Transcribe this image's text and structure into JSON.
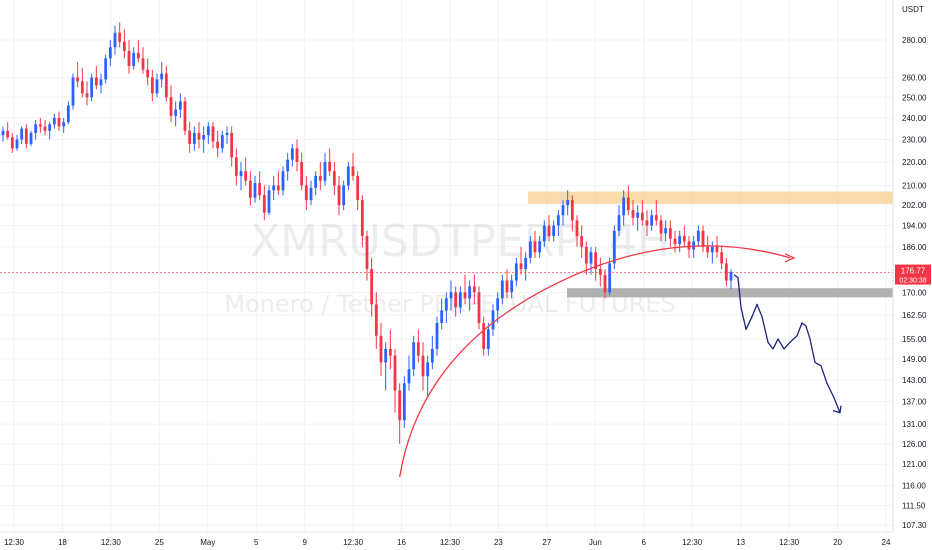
{
  "chart_data": {
    "type": "candlestick",
    "symbol": "XMRUSDTPERP, 4H",
    "description": "Monero / Tether PERPETUAL FUTURES",
    "currency": "USDT",
    "ylim": [
      104,
      300
    ],
    "y_scale": "log",
    "y_ticks": [
      "280.00",
      "260.00",
      "250.00",
      "240.00",
      "230.00",
      "220.00",
      "210.00",
      "202.00",
      "194.00",
      "186.00",
      "170.00",
      "162.50",
      "155.00",
      "149.00",
      "143.00",
      "137.00",
      "131.00",
      "126.00",
      "121.00",
      "116.00",
      "111.50",
      "107.30"
    ],
    "x_ticks": [
      "12:30",
      "18",
      "12:30",
      "25",
      "May",
      "5",
      "9",
      "12:30",
      "16",
      "12:30",
      "23",
      "27",
      "Jun",
      "6",
      "12:30",
      "13",
      "12:30",
      "20",
      "24"
    ],
    "last_price": "176.77",
    "countdown": "02:30:38",
    "grid": true,
    "colors": {
      "up": "#2962ff",
      "down": "#f23645",
      "accent_red": "#f23645",
      "zone_orange": "#f7c77e",
      "zone_gray": "#9e9e9e",
      "projection": "#1a237e"
    },
    "annotations": [
      {
        "kind": "resistance-zone",
        "from_price": 202.5,
        "to_price": 207.5
      },
      {
        "kind": "support-zone",
        "from_price": 168.3,
        "to_price": 171.4
      },
      {
        "kind": "curved-trendline-arrow"
      },
      {
        "kind": "projection-path"
      }
    ],
    "series": [
      {
        "values": [
          [
            232,
            236,
            229,
            234
          ],
          [
            234,
            238,
            230,
            231
          ],
          [
            231,
            233,
            224,
            226
          ],
          [
            226,
            232,
            225,
            230
          ],
          [
            230,
            236,
            228,
            235
          ],
          [
            235,
            237,
            226,
            228
          ],
          [
            228,
            234,
            227,
            233
          ],
          [
            233,
            239,
            230,
            237
          ],
          [
            237,
            240,
            233,
            236
          ],
          [
            236,
            239,
            232,
            234
          ],
          [
            234,
            238,
            230,
            237
          ],
          [
            237,
            242,
            235,
            240
          ],
          [
            240,
            243,
            234,
            236
          ],
          [
            236,
            240,
            233,
            238
          ],
          [
            238,
            248,
            237,
            246
          ],
          [
            246,
            262,
            244,
            260
          ],
          [
            260,
            268,
            255,
            258
          ],
          [
            258,
            265,
            250,
            252
          ],
          [
            252,
            258,
            246,
            250
          ],
          [
            250,
            262,
            248,
            260
          ],
          [
            260,
            266,
            254,
            256
          ],
          [
            256,
            262,
            252,
            259
          ],
          [
            259,
            272,
            257,
            270
          ],
          [
            270,
            280,
            266,
            276
          ],
          [
            276,
            288,
            272,
            284
          ],
          [
            284,
            290,
            276,
            279
          ],
          [
            279,
            286,
            270,
            274
          ],
          [
            274,
            280,
            262,
            266
          ],
          [
            266,
            276,
            264,
            273
          ],
          [
            273,
            280,
            268,
            270
          ],
          [
            270,
            276,
            262,
            264
          ],
          [
            264,
            270,
            256,
            260
          ],
          [
            260,
            264,
            248,
            252
          ],
          [
            252,
            262,
            250,
            259
          ],
          [
            259,
            268,
            255,
            262
          ],
          [
            262,
            266,
            248,
            250
          ],
          [
            250,
            256,
            238,
            241
          ],
          [
            241,
            248,
            236,
            244
          ],
          [
            244,
            252,
            240,
            248
          ],
          [
            248,
            250,
            232,
            234
          ],
          [
            234,
            238,
            224,
            228
          ],
          [
            228,
            236,
            225,
            233
          ],
          [
            233,
            238,
            226,
            230
          ],
          [
            230,
            236,
            224,
            232
          ],
          [
            232,
            238,
            228,
            236
          ],
          [
            236,
            238,
            226,
            229
          ],
          [
            229,
            234,
            222,
            226
          ],
          [
            226,
            234,
            224,
            232
          ],
          [
            232,
            236,
            228,
            233
          ],
          [
            233,
            236,
            218,
            222
          ],
          [
            222,
            226,
            210,
            214
          ],
          [
            214,
            220,
            208,
            216
          ],
          [
            216,
            222,
            210,
            212
          ],
          [
            212,
            216,
            202,
            205
          ],
          [
            205,
            214,
            203,
            211
          ],
          [
            211,
            216,
            204,
            206
          ],
          [
            206,
            210,
            196,
            199
          ],
          [
            199,
            210,
            198,
            208
          ],
          [
            208,
            214,
            204,
            210
          ],
          [
            210,
            216,
            206,
            208
          ],
          [
            208,
            218,
            206,
            216
          ],
          [
            216,
            224,
            212,
            221
          ],
          [
            221,
            228,
            218,
            226
          ],
          [
            226,
            230,
            216,
            220
          ],
          [
            220,
            224,
            208,
            210
          ],
          [
            210,
            214,
            200,
            204
          ],
          [
            204,
            212,
            202,
            209
          ],
          [
            209,
            216,
            206,
            214
          ],
          [
            214,
            220,
            208,
            212
          ],
          [
            212,
            224,
            210,
            220
          ],
          [
            220,
            226,
            214,
            216
          ],
          [
            216,
            220,
            206,
            210
          ],
          [
            210,
            214,
            198,
            202
          ],
          [
            202,
            212,
            200,
            210
          ],
          [
            210,
            220,
            208,
            218
          ],
          [
            218,
            224,
            212,
            214
          ],
          [
            214,
            216,
            200,
            204
          ],
          [
            204,
            206,
            186,
            190
          ],
          [
            190,
            192,
            174,
            178
          ],
          [
            178,
            182,
            162,
            166
          ],
          [
            166,
            170,
            152,
            156
          ],
          [
            156,
            160,
            144,
            148
          ],
          [
            148,
            154,
            140,
            152
          ],
          [
            152,
            158,
            146,
            150
          ],
          [
            150,
            152,
            134,
            140
          ],
          [
            140,
            142,
            126,
            132
          ],
          [
            132,
            144,
            130,
            142
          ],
          [
            142,
            150,
            140,
            146
          ],
          [
            146,
            156,
            144,
            154
          ],
          [
            154,
            158,
            148,
            150
          ],
          [
            150,
            154,
            140,
            144
          ],
          [
            144,
            150,
            138,
            148
          ],
          [
            148,
            156,
            146,
            152
          ],
          [
            152,
            162,
            150,
            160
          ],
          [
            160,
            168,
            158,
            164
          ],
          [
            164,
            170,
            160,
            168
          ],
          [
            168,
            174,
            164,
            170
          ],
          [
            170,
            172,
            162,
            165
          ],
          [
            165,
            172,
            163,
            170
          ],
          [
            170,
            176,
            166,
            168
          ],
          [
            168,
            174,
            164,
            172
          ],
          [
            172,
            176,
            166,
            170
          ],
          [
            170,
            172,
            158,
            160
          ],
          [
            160,
            162,
            150,
            152
          ],
          [
            152,
            160,
            150,
            158
          ],
          [
            158,
            166,
            156,
            164
          ],
          [
            164,
            170,
            160,
            168
          ],
          [
            168,
            176,
            166,
            174
          ],
          [
            174,
            178,
            168,
            170
          ],
          [
            170,
            176,
            168,
            174
          ],
          [
            174,
            182,
            172,
            180
          ],
          [
            180,
            186,
            176,
            178
          ],
          [
            178,
            184,
            174,
            182
          ],
          [
            182,
            190,
            180,
            188
          ],
          [
            188,
            192,
            182,
            184
          ],
          [
            184,
            190,
            182,
            188
          ],
          [
            188,
            196,
            186,
            194
          ],
          [
            194,
            198,
            188,
            190
          ],
          [
            190,
            196,
            188,
            194
          ],
          [
            194,
            200,
            190,
            198
          ],
          [
            198,
            204,
            194,
            202
          ],
          [
            202,
            208,
            198,
            204
          ],
          [
            204,
            206,
            192,
            196
          ],
          [
            196,
            198,
            186,
            190
          ],
          [
            190,
            194,
            182,
            186
          ],
          [
            186,
            188,
            176,
            180
          ],
          [
            180,
            186,
            176,
            184
          ],
          [
            184,
            186,
            174,
            178
          ],
          [
            178,
            182,
            172,
            176
          ],
          [
            176,
            178,
            168,
            170
          ],
          [
            170,
            182,
            169,
            180
          ],
          [
            180,
            194,
            178,
            192
          ],
          [
            192,
            202,
            190,
            198
          ],
          [
            198,
            208,
            194,
            205
          ],
          [
            205,
            210,
            198,
            200
          ],
          [
            200,
            204,
            194,
            197
          ],
          [
            197,
            202,
            192,
            199
          ],
          [
            199,
            204,
            194,
            196
          ],
          [
            196,
            200,
            190,
            194
          ],
          [
            194,
            200,
            192,
            198
          ],
          [
            198,
            204,
            194,
            196
          ],
          [
            196,
            198,
            188,
            191
          ],
          [
            191,
            196,
            188,
            193
          ],
          [
            193,
            196,
            186,
            189
          ],
          [
            189,
            192,
            184,
            187
          ],
          [
            187,
            192,
            184,
            190
          ],
          [
            190,
            194,
            186,
            188
          ],
          [
            188,
            190,
            182,
            185
          ],
          [
            185,
            190,
            182,
            188
          ],
          [
            188,
            194,
            186,
            192
          ],
          [
            192,
            194,
            184,
            186
          ],
          [
            186,
            190,
            182,
            184
          ],
          [
            184,
            188,
            180,
            186
          ],
          [
            186,
            190,
            182,
            184
          ],
          [
            184,
            186,
            178,
            180
          ],
          [
            180,
            182,
            172,
            174
          ],
          [
            174,
            178,
            171,
            177
          ]
        ]
      }
    ]
  }
}
